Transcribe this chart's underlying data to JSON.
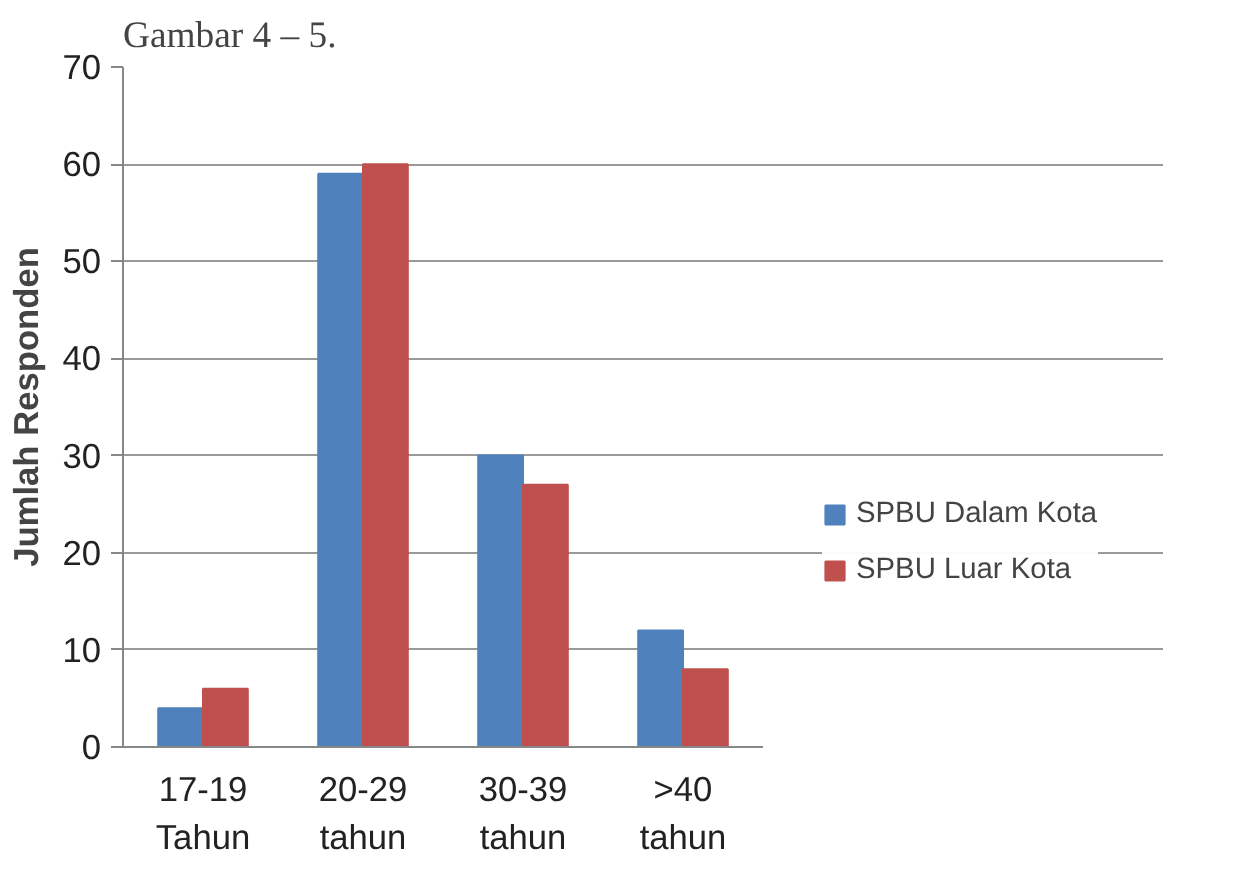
{
  "chart_data": {
    "type": "bar",
    "ylabel": "Jumlah Responden",
    "categories": [
      "17-19 Tahun",
      "20-29 tahun",
      "30-39 tahun",
      ">40 tahun"
    ],
    "series": [
      {
        "name": "SPBU Dalam Kota",
        "color": "#4f81bd",
        "values": [
          4,
          59,
          30,
          12
        ]
      },
      {
        "name": "SPBU Luar Kota",
        "color": "#c0504d",
        "values": [
          6,
          60,
          27,
          8
        ]
      }
    ],
    "ylim": [
      0,
      70
    ],
    "yticks": [
      0,
      10,
      20,
      30,
      40,
      50,
      60,
      70
    ],
    "grid": "y",
    "legend": "right",
    "annotations": [
      "Gambar 4 – 5."
    ]
  }
}
